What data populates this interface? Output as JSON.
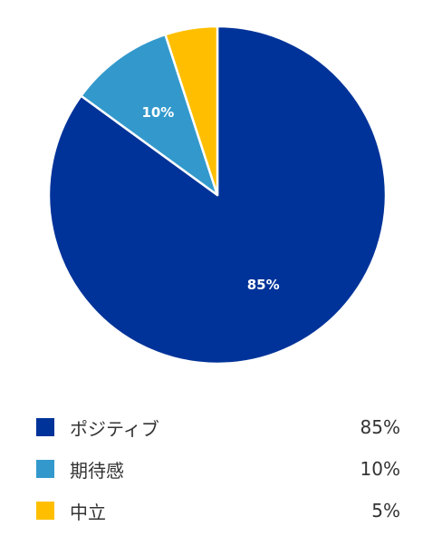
{
  "chart_data": {
    "type": "pie",
    "title": "",
    "start_angle_deg": 0,
    "direction": "clockwise",
    "legend_position": "bottom",
    "slices": [
      {
        "name": "ポジティブ",
        "value": 85,
        "label": "85%",
        "legend_value": "85%",
        "color": "#003399",
        "show_label": true
      },
      {
        "name": "期待感",
        "value": 10,
        "label": "10%",
        "legend_value": "10%",
        "color": "#3399CC",
        "show_label": true
      },
      {
        "name": "中立",
        "value": 5,
        "label": "5%",
        "legend_value": "5%",
        "color": "#FFBF00",
        "show_label": false
      }
    ]
  }
}
